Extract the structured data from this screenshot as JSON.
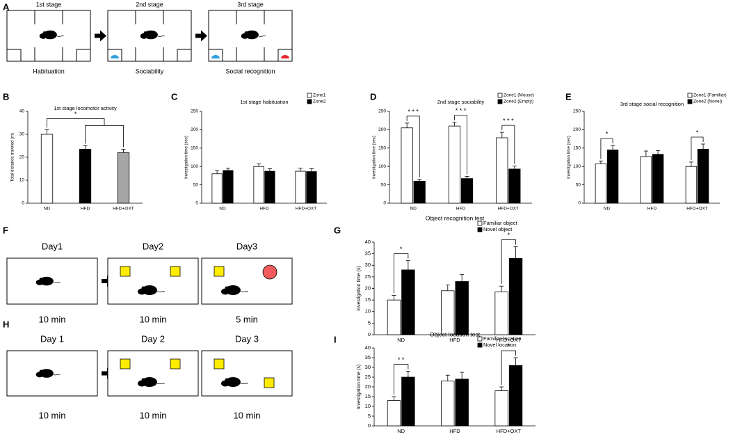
{
  "diagrams": [
    {
      "panel": "A",
      "kind": "chambers",
      "steps": [
        {
          "label": "1st stage",
          "caption": "Habituation"
        },
        {
          "label": "2nd stage",
          "caption": "Sociability"
        },
        {
          "label": "3rd stage",
          "caption": "Social recognition"
        }
      ]
    },
    {
      "panel": "F",
      "kind": "objects",
      "steps": [
        {
          "label": "Day1",
          "caption": "10 min"
        },
        {
          "label": "Day2",
          "caption": "10 min"
        },
        {
          "label": "Day3",
          "caption": "5 min"
        }
      ]
    },
    {
      "panel": "H",
      "kind": "locations",
      "steps": [
        {
          "label": "Day 1",
          "caption": "10 min"
        },
        {
          "label": "Day 2",
          "caption": "10 min"
        },
        {
          "label": "Day 3",
          "caption": "10 min"
        }
      ]
    }
  ],
  "chart_data": [
    {
      "panel": "B",
      "type": "bar",
      "title": "1st stage locomotor activity",
      "y_label": "Total distance traveled (m)",
      "categories": [
        "ND",
        "HFD",
        "HFD+OXT"
      ],
      "values": [
        30,
        23.5,
        22
      ],
      "errors": [
        2,
        1.5,
        1.5
      ],
      "colors": [
        "#ffffff",
        "#000000",
        "#a6a6a6"
      ],
      "ylim": [
        0,
        40
      ],
      "yticks": [
        0,
        10,
        20,
        30,
        40
      ],
      "significance": "*"
    },
    {
      "panel": "C",
      "type": "bar",
      "title": "1st stage habituation",
      "y_label": "Investigation time (sec)",
      "categories": [
        "ND",
        "HFD",
        "HFD+OXT"
      ],
      "legend": "upper right",
      "series": [
        {
          "name": "Zone1",
          "color": "#ffffff",
          "values": [
            80,
            100,
            87
          ],
          "errors": [
            8,
            7,
            8
          ]
        },
        {
          "name": "Zone2",
          "color": "#000000",
          "values": [
            89,
            87,
            86
          ],
          "errors": [
            6,
            7,
            8
          ]
        }
      ],
      "ylim": [
        0,
        250
      ],
      "yticks": [
        0,
        50,
        100,
        150,
        200,
        250
      ],
      "significance": [
        null,
        null,
        null
      ]
    },
    {
      "panel": "D",
      "type": "bar",
      "title": "2nd stage sociability",
      "y_label": "Investigation time (sec)",
      "categories": [
        "ND",
        "HFD",
        "HFD+OXT"
      ],
      "legend": "upper right",
      "series": [
        {
          "name": "Zone1 (Mouse)",
          "color": "#ffffff",
          "values": [
            205,
            210,
            178
          ],
          "errors": [
            13,
            10,
            15
          ]
        },
        {
          "name": "Zone2 (Empty)",
          "color": "#000000",
          "values": [
            60,
            67,
            93
          ],
          "errors": [
            5,
            6,
            8
          ]
        }
      ],
      "ylim": [
        0,
        250
      ],
      "yticks": [
        0,
        50,
        100,
        150,
        200,
        250
      ],
      "significance": [
        "* * *",
        "* * *",
        "* * *"
      ]
    },
    {
      "panel": "E",
      "type": "bar",
      "title": "3rd stage social recognition",
      "y_label": "Investigation time (sec)",
      "categories": [
        "ND",
        "HFD",
        "HFD+OXT"
      ],
      "legend": "upper right",
      "series": [
        {
          "name": "Zone1 (Familiar)",
          "color": "#ffffff",
          "values": [
            107,
            127,
            100
          ],
          "errors": [
            8,
            15,
            12
          ]
        },
        {
          "name": "Zone2 (Novel)",
          "color": "#000000",
          "values": [
            145,
            133,
            147
          ],
          "errors": [
            12,
            10,
            14
          ]
        }
      ],
      "ylim": [
        0,
        250
      ],
      "yticks": [
        0,
        50,
        100,
        150,
        200,
        250
      ],
      "significance": [
        "*",
        null,
        "*"
      ]
    },
    {
      "panel": "G",
      "type": "bar",
      "title": "Object recognition test",
      "y_label": "Investigation time (s)",
      "categories": [
        "ND",
        "HFD",
        "HFD+OXT"
      ],
      "legend": "upper right",
      "series": [
        {
          "name": "Familiar object",
          "color": "#ffffff",
          "values": [
            15,
            19,
            18.5
          ],
          "errors": [
            2,
            2.5,
            2.5
          ]
        },
        {
          "name": "Novel object",
          "color": "#000000",
          "values": [
            28,
            23,
            33
          ],
          "errors": [
            4,
            3,
            5
          ]
        }
      ],
      "ylim": [
        0,
        40
      ],
      "yticks": [
        0,
        5,
        10,
        15,
        20,
        25,
        30,
        35,
        40
      ],
      "significance": [
        "*",
        null,
        "*"
      ]
    },
    {
      "panel": "I",
      "type": "bar",
      "title": "Object location test",
      "y_label": "Investigation time (s)",
      "categories": [
        "ND",
        "HFD",
        "HFD+OXT"
      ],
      "legend": "upper right",
      "series": [
        {
          "name": "Familiar location",
          "color": "#ffffff",
          "values": [
            13,
            23,
            18
          ],
          "errors": [
            2,
            3,
            2
          ]
        },
        {
          "name": "Novel location",
          "color": "#000000",
          "values": [
            25,
            24,
            31
          ],
          "errors": [
            3,
            3.5,
            4
          ]
        }
      ],
      "ylim": [
        0,
        40
      ],
      "yticks": [
        0,
        5,
        10,
        15,
        20,
        25,
        30,
        35,
        40
      ],
      "significance": [
        "* *",
        null,
        "*"
      ]
    }
  ]
}
